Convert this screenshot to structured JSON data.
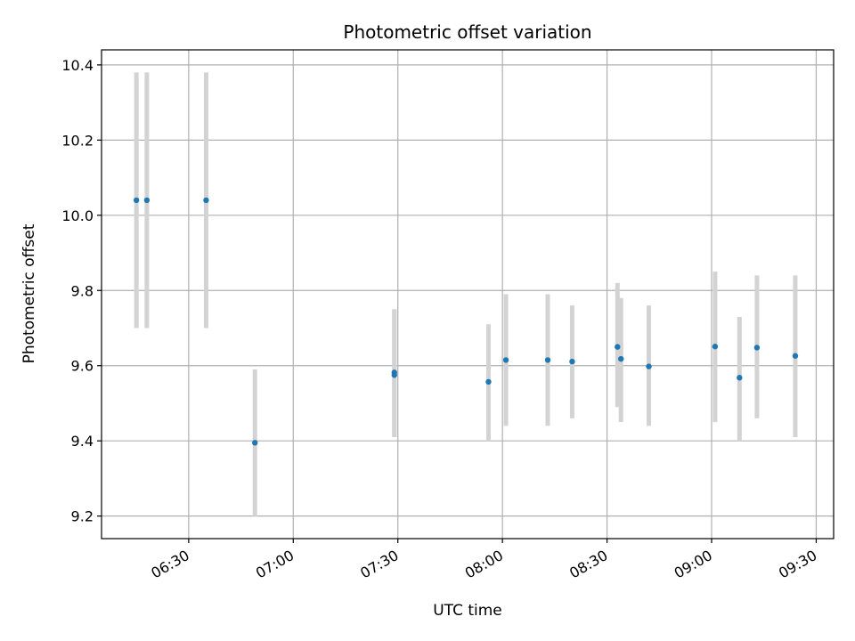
{
  "chart_data": {
    "type": "scatter",
    "title": "Photometric offset variation",
    "xlabel": "UTC time",
    "ylabel": "Photometric offset",
    "x_axis_kind": "time",
    "xlim": [
      "06:05",
      "09:35"
    ],
    "ylim": [
      9.14,
      10.44
    ],
    "x_ticks": [
      "06:30",
      "07:00",
      "07:30",
      "08:00",
      "08:30",
      "09:00",
      "09:30"
    ],
    "y_ticks": [
      9.2,
      9.4,
      9.6,
      9.8,
      10.0,
      10.2,
      10.4
    ],
    "grid": true,
    "legend": "none",
    "colors": {
      "point": "#1f77b4",
      "errorbar": "#d3d3d3",
      "grid": "#b0b0b0"
    },
    "series": [
      {
        "points": [
          {
            "x": "06:15",
            "y": 10.04,
            "ylo": 9.7,
            "yhi": 10.38
          },
          {
            "x": "06:18",
            "y": 10.04,
            "ylo": 9.7,
            "yhi": 10.38
          },
          {
            "x": "06:35",
            "y": 10.04,
            "ylo": 9.7,
            "yhi": 10.38
          },
          {
            "x": "06:49",
            "y": 9.395,
            "ylo": 9.2,
            "yhi": 9.59
          },
          {
            "x": "07:29",
            "y": 9.582,
            "ylo": 9.41,
            "yhi": 9.75
          },
          {
            "x": "07:29",
            "y": 9.575,
            "ylo": 9.41,
            "yhi": 9.75
          },
          {
            "x": "07:56",
            "y": 9.557,
            "ylo": 9.4,
            "yhi": 9.71
          },
          {
            "x": "08:01",
            "y": 9.615,
            "ylo": 9.44,
            "yhi": 9.79
          },
          {
            "x": "08:13",
            "y": 9.615,
            "ylo": 9.44,
            "yhi": 9.79
          },
          {
            "x": "08:20",
            "y": 9.611,
            "ylo": 9.46,
            "yhi": 9.76
          },
          {
            "x": "08:33",
            "y": 9.65,
            "ylo": 9.49,
            "yhi": 9.82
          },
          {
            "x": "08:34",
            "y": 9.618,
            "ylo": 9.45,
            "yhi": 9.78
          },
          {
            "x": "08:42",
            "y": 9.598,
            "ylo": 9.44,
            "yhi": 9.76
          },
          {
            "x": "09:01",
            "y": 9.651,
            "ylo": 9.45,
            "yhi": 9.85
          },
          {
            "x": "09:08",
            "y": 9.568,
            "ylo": 9.4,
            "yhi": 9.73
          },
          {
            "x": "09:13",
            "y": 9.648,
            "ylo": 9.46,
            "yhi": 9.84
          },
          {
            "x": "09:24",
            "y": 9.626,
            "ylo": 9.41,
            "yhi": 9.84
          }
        ]
      }
    ]
  }
}
